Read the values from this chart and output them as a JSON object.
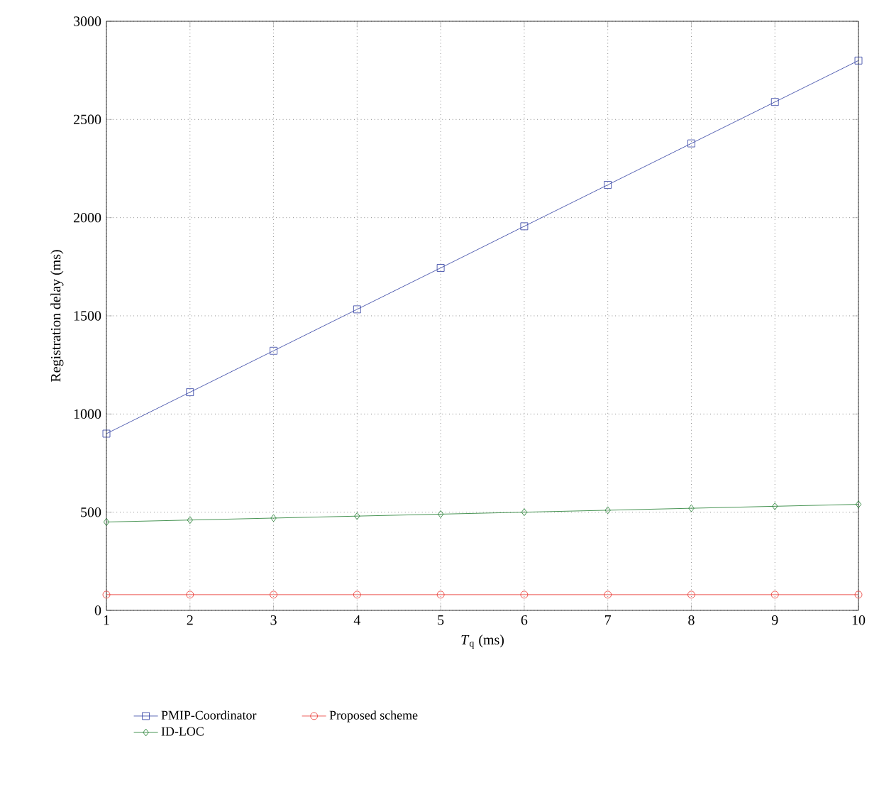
{
  "chart_data": {
    "type": "line",
    "xlabel": "*T*$_{q}$ (ms)",
    "ylabel": "Registration delay (ms)",
    "x": [
      1,
      2,
      3,
      4,
      5,
      6,
      7,
      8,
      9,
      10
    ],
    "series": [
      {
        "name": "PMIP-Coordinator",
        "color": "#2b3aa0",
        "marker": "square",
        "values": [
          900,
          1111,
          1322,
          1533,
          1744,
          1956,
          2167,
          2378,
          2589,
          2800
        ]
      },
      {
        "name": "ID-LOC",
        "color": "#1a7a2a",
        "marker": "diamond",
        "values": [
          450,
          460,
          470,
          480,
          490,
          500,
          510,
          520,
          530,
          540
        ]
      },
      {
        "name": "Proposed scheme",
        "color": "#e8302a",
        "marker": "circle",
        "values": [
          80,
          80,
          80,
          80,
          80,
          80,
          80,
          80,
          80,
          80
        ]
      }
    ],
    "xlim": [
      1,
      10
    ],
    "ylim": [
      0,
      3000
    ],
    "xticks": [
      1,
      2,
      3,
      4,
      5,
      6,
      7,
      8,
      9,
      10
    ],
    "yticks": [
      0,
      500,
      1000,
      1500,
      2000,
      2500,
      3000
    ],
    "grid": true,
    "legend": "bottom",
    "line_style": "solid"
  }
}
